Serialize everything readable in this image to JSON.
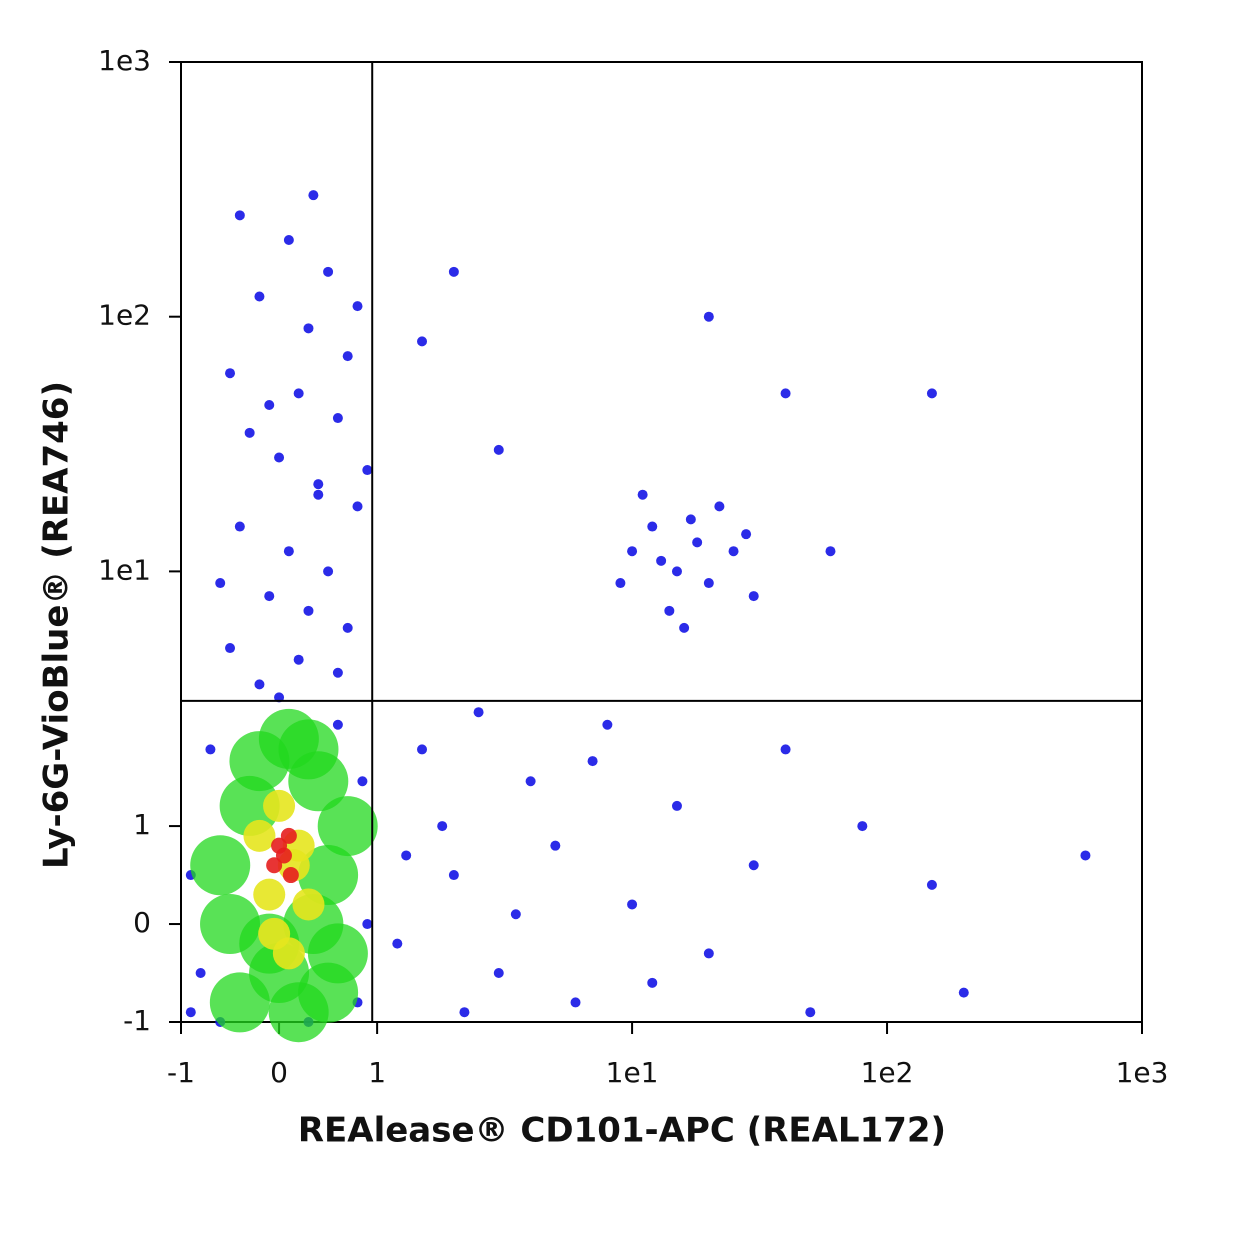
{
  "chart_data": {
    "type": "scatter",
    "scale": "biexponential",
    "xlabel": "REAlease® CD101-APC (REAL172)",
    "ylabel": "Ly-6G-VioBlue® (REA746)",
    "xlim": [
      -1,
      1000
    ],
    "ylim": [
      -1,
      1000
    ],
    "xticks": [
      -1,
      0,
      1,
      {
        "value": 10,
        "label": "1e1"
      },
      {
        "value": 100,
        "label": "1e2"
      },
      {
        "value": 1000,
        "label": "1e3"
      }
    ],
    "yticks": [
      -1,
      0,
      1,
      {
        "value": 10,
        "label": "1e1"
      },
      {
        "value": 100,
        "label": "1e2"
      },
      {
        "value": 1000,
        "label": "1e3"
      }
    ],
    "gate": {
      "x": 0.95,
      "y": 3.1
    },
    "series": [
      {
        "color": "#1414e6",
        "x": [
          -0.4,
          0.1,
          0.5,
          -0.2,
          0.3,
          0.7,
          -0.5,
          0.2,
          0.6,
          -0.3,
          0.0,
          0.4,
          0.8,
          -0.4,
          0.1,
          0.5,
          -0.1,
          0.3,
          0.7,
          -0.5,
          0.2,
          0.6,
          -0.2,
          0.0,
          0.4,
          -0.1,
          0.35,
          0.8,
          -0.6,
          0.9,
          10,
          12,
          15,
          18,
          20,
          14,
          25,
          11,
          22,
          16,
          13,
          30,
          9,
          17,
          28,
          1.5,
          2,
          3,
          4,
          5,
          6,
          8,
          10,
          15,
          20,
          30,
          50,
          80,
          2.5,
          1.2,
          1.8,
          3.5,
          7,
          12,
          40,
          150,
          200,
          600,
          1.3,
          2.2,
          2,
          1.5,
          40,
          150,
          20,
          3,
          60,
          -0.9,
          -0.8,
          0.9,
          0.85,
          -0.7,
          -0.9,
          0.8,
          0.6,
          -0.6,
          0.3
        ],
        "values": [
          250,
          200,
          150,
          120,
          90,
          70,
          60,
          50,
          40,
          35,
          28,
          22,
          18,
          15,
          12,
          10,
          8,
          7,
          6,
          5,
          4.5,
          4,
          3.6,
          3.2,
          20,
          45,
          300,
          110,
          9,
          25,
          12,
          15,
          10,
          13,
          9,
          7,
          12,
          20,
          18,
          6,
          11,
          8,
          9,
          16,
          14,
          2,
          0.5,
          -0.5,
          1.5,
          0.8,
          -0.8,
          2.5,
          0.2,
          1.2,
          -0.3,
          0.6,
          -0.9,
          1,
          2.8,
          -0.2,
          1,
          0.1,
          1.8,
          -0.6,
          2,
          0.4,
          -0.7,
          0.7,
          0.7,
          -0.9,
          150,
          80,
          50,
          50,
          100,
          30,
          12,
          0.5,
          -0.5,
          0,
          1.5,
          2,
          -0.9,
          -0.8,
          2.5,
          -1,
          -1
        ]
      },
      {
        "color": "#22d81e",
        "x": [
          -0.5,
          -0.3,
          0,
          0.3,
          0.5,
          0.6,
          -0.4,
          0.2,
          0.4,
          -0.2,
          0.7,
          -0.6,
          0.1,
          0.5,
          -0.1,
          0.35
        ],
        "values": [
          0,
          1.2,
          -0.5,
          2,
          0.5,
          -0.3,
          -0.8,
          -0.9,
          1.5,
          1.8,
          1,
          0.6,
          2.2,
          -0.7,
          -0.2,
          0
        ]
      },
      {
        "color": "#e6e61e",
        "x": [
          -0.1,
          0.2,
          0.1,
          -0.2,
          0.3,
          0.0,
          0.15,
          -0.05
        ],
        "values": [
          0.3,
          0.8,
          -0.3,
          0.9,
          0.2,
          1.2,
          0.6,
          -0.1
        ]
      },
      {
        "color": "#e61e1e",
        "x": [
          0.05,
          0.1,
          -0.05,
          0.12,
          0.0
        ],
        "values": [
          0.7,
          0.9,
          0.6,
          0.5,
          0.8
        ]
      }
    ]
  }
}
